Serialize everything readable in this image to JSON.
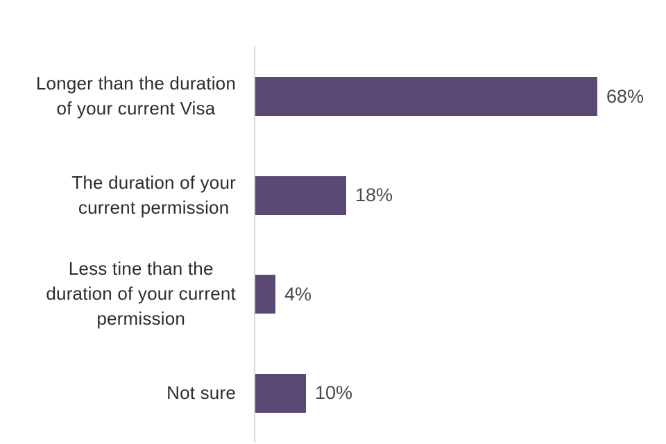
{
  "page": {
    "background_color": "#ffffff"
  },
  "chart_data": {
    "type": "bar",
    "orientation": "horizontal",
    "title": "",
    "xlabel": "",
    "ylabel": "",
    "grid": false,
    "legend": false,
    "categories": [
      "Longer than the duration\nof your current Visa",
      "The duration of your\ncurrent permission",
      "Less tine than the\nduration of your current\npermission",
      "Not sure"
    ],
    "values": [
      68,
      18,
      4,
      10
    ],
    "value_labels": [
      "68%",
      "18%",
      "4%",
      "10%"
    ],
    "bar_color": "#5b4975",
    "axis_line_color": "#d9d9d9",
    "category_label_color": "#2d2d2d",
    "value_label_color": "#4a4a4a"
  }
}
